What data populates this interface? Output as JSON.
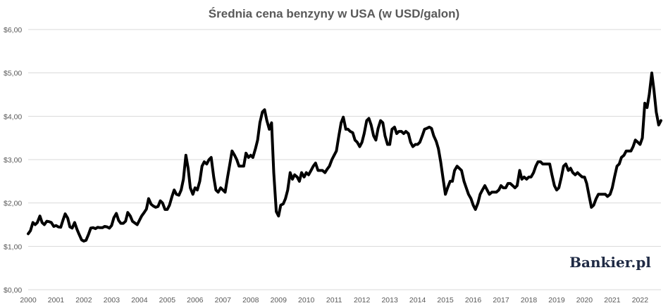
{
  "chart_data": {
    "type": "line",
    "title": "Średnia cena benzyny w USA (w USD/galon)",
    "xlabel": "",
    "ylabel": "",
    "xlim": [
      2000.0,
      2022.75
    ],
    "ylim": [
      0,
      6
    ],
    "grid": true,
    "y_ticks": [
      {
        "value": 0,
        "label": "$0,00"
      },
      {
        "value": 1,
        "label": "$1,00"
      },
      {
        "value": 2,
        "label": "$2,00"
      },
      {
        "value": 3,
        "label": "$3,00"
      },
      {
        "value": 4,
        "label": "$4,00"
      },
      {
        "value": 5,
        "label": "$5,00"
      },
      {
        "value": 6,
        "label": "$6,00"
      }
    ],
    "x_ticks": [
      {
        "value": 2000,
        "label": "2000"
      },
      {
        "value": 2001,
        "label": "2001"
      },
      {
        "value": 2002,
        "label": "2002"
      },
      {
        "value": 2003,
        "label": "2003"
      },
      {
        "value": 2004,
        "label": "2004"
      },
      {
        "value": 2005,
        "label": "2005"
      },
      {
        "value": 2006,
        "label": "2006"
      },
      {
        "value": 2007,
        "label": "2007"
      },
      {
        "value": 2008,
        "label": "2008"
      },
      {
        "value": 2009,
        "label": "2009"
      },
      {
        "value": 2010,
        "label": "2010"
      },
      {
        "value": 2011,
        "label": "2011"
      },
      {
        "value": 2012,
        "label": "2012"
      },
      {
        "value": 2013,
        "label": "2013"
      },
      {
        "value": 2014,
        "label": "2014"
      },
      {
        "value": 2015,
        "label": "2015"
      },
      {
        "value": 2016,
        "label": "2016"
      },
      {
        "value": 2017,
        "label": "2017"
      },
      {
        "value": 2018,
        "label": "2018"
      },
      {
        "value": 2019,
        "label": "2019"
      },
      {
        "value": 2020,
        "label": "2020"
      },
      {
        "value": 2021,
        "label": "2021"
      },
      {
        "value": 2022,
        "label": "2022"
      }
    ],
    "series": [
      {
        "color": "#000000",
        "points": [
          [
            2000.0,
            1.29
          ],
          [
            2000.08,
            1.36
          ],
          [
            2000.17,
            1.55
          ],
          [
            2000.25,
            1.5
          ],
          [
            2000.33,
            1.55
          ],
          [
            2000.42,
            1.7
          ],
          [
            2000.5,
            1.55
          ],
          [
            2000.58,
            1.5
          ],
          [
            2000.67,
            1.58
          ],
          [
            2000.75,
            1.57
          ],
          [
            2000.83,
            1.55
          ],
          [
            2000.92,
            1.46
          ],
          [
            2001.0,
            1.48
          ],
          [
            2001.08,
            1.45
          ],
          [
            2001.17,
            1.44
          ],
          [
            2001.25,
            1.6
          ],
          [
            2001.33,
            1.75
          ],
          [
            2001.42,
            1.65
          ],
          [
            2001.5,
            1.45
          ],
          [
            2001.58,
            1.42
          ],
          [
            2001.67,
            1.55
          ],
          [
            2001.75,
            1.4
          ],
          [
            2001.83,
            1.28
          ],
          [
            2001.92,
            1.15
          ],
          [
            2002.0,
            1.12
          ],
          [
            2002.08,
            1.14
          ],
          [
            2002.17,
            1.28
          ],
          [
            2002.25,
            1.42
          ],
          [
            2002.33,
            1.43
          ],
          [
            2002.42,
            1.41
          ],
          [
            2002.5,
            1.44
          ],
          [
            2002.58,
            1.43
          ],
          [
            2002.67,
            1.43
          ],
          [
            2002.75,
            1.46
          ],
          [
            2002.83,
            1.45
          ],
          [
            2002.92,
            1.42
          ],
          [
            2003.0,
            1.48
          ],
          [
            2003.08,
            1.66
          ],
          [
            2003.17,
            1.76
          ],
          [
            2003.25,
            1.6
          ],
          [
            2003.33,
            1.53
          ],
          [
            2003.42,
            1.53
          ],
          [
            2003.5,
            1.58
          ],
          [
            2003.58,
            1.78
          ],
          [
            2003.67,
            1.7
          ],
          [
            2003.75,
            1.58
          ],
          [
            2003.83,
            1.54
          ],
          [
            2003.92,
            1.5
          ],
          [
            2004.0,
            1.6
          ],
          [
            2004.08,
            1.7
          ],
          [
            2004.17,
            1.78
          ],
          [
            2004.25,
            1.86
          ],
          [
            2004.33,
            2.1
          ],
          [
            2004.42,
            1.97
          ],
          [
            2004.5,
            1.93
          ],
          [
            2004.58,
            1.9
          ],
          [
            2004.67,
            1.92
          ],
          [
            2004.75,
            2.05
          ],
          [
            2004.83,
            2.0
          ],
          [
            2004.92,
            1.85
          ],
          [
            2005.0,
            1.85
          ],
          [
            2005.08,
            1.95
          ],
          [
            2005.17,
            2.15
          ],
          [
            2005.25,
            2.3
          ],
          [
            2005.33,
            2.2
          ],
          [
            2005.42,
            2.18
          ],
          [
            2005.5,
            2.3
          ],
          [
            2005.58,
            2.55
          ],
          [
            2005.67,
            3.1
          ],
          [
            2005.75,
            2.8
          ],
          [
            2005.83,
            2.35
          ],
          [
            2005.92,
            2.2
          ],
          [
            2006.0,
            2.35
          ],
          [
            2006.08,
            2.3
          ],
          [
            2006.17,
            2.5
          ],
          [
            2006.25,
            2.85
          ],
          [
            2006.33,
            2.95
          ],
          [
            2006.42,
            2.9
          ],
          [
            2006.5,
            3.0
          ],
          [
            2006.58,
            3.05
          ],
          [
            2006.67,
            2.6
          ],
          [
            2006.75,
            2.3
          ],
          [
            2006.83,
            2.25
          ],
          [
            2006.92,
            2.35
          ],
          [
            2007.0,
            2.3
          ],
          [
            2007.08,
            2.25
          ],
          [
            2007.17,
            2.6
          ],
          [
            2007.25,
            2.9
          ],
          [
            2007.33,
            3.2
          ],
          [
            2007.42,
            3.1
          ],
          [
            2007.5,
            3.0
          ],
          [
            2007.58,
            2.85
          ],
          [
            2007.67,
            2.85
          ],
          [
            2007.75,
            2.85
          ],
          [
            2007.83,
            3.15
          ],
          [
            2007.92,
            3.05
          ],
          [
            2008.0,
            3.1
          ],
          [
            2008.08,
            3.05
          ],
          [
            2008.17,
            3.25
          ],
          [
            2008.25,
            3.45
          ],
          [
            2008.33,
            3.85
          ],
          [
            2008.42,
            4.1
          ],
          [
            2008.5,
            4.15
          ],
          [
            2008.58,
            3.9
          ],
          [
            2008.67,
            3.7
          ],
          [
            2008.75,
            3.85
          ],
          [
            2008.83,
            2.7
          ],
          [
            2008.92,
            1.8
          ],
          [
            2009.0,
            1.7
          ],
          [
            2009.08,
            1.95
          ],
          [
            2009.17,
            1.98
          ],
          [
            2009.25,
            2.1
          ],
          [
            2009.33,
            2.3
          ],
          [
            2009.42,
            2.7
          ],
          [
            2009.5,
            2.55
          ],
          [
            2009.58,
            2.65
          ],
          [
            2009.67,
            2.6
          ],
          [
            2009.75,
            2.5
          ],
          [
            2009.83,
            2.7
          ],
          [
            2009.92,
            2.6
          ],
          [
            2010.0,
            2.7
          ],
          [
            2010.08,
            2.65
          ],
          [
            2010.17,
            2.75
          ],
          [
            2010.25,
            2.85
          ],
          [
            2010.33,
            2.92
          ],
          [
            2010.42,
            2.75
          ],
          [
            2010.5,
            2.75
          ],
          [
            2010.58,
            2.75
          ],
          [
            2010.67,
            2.7
          ],
          [
            2010.75,
            2.78
          ],
          [
            2010.83,
            2.85
          ],
          [
            2010.92,
            3.0
          ],
          [
            2011.0,
            3.1
          ],
          [
            2011.08,
            3.2
          ],
          [
            2011.17,
            3.55
          ],
          [
            2011.25,
            3.85
          ],
          [
            2011.33,
            3.98
          ],
          [
            2011.42,
            3.7
          ],
          [
            2011.5,
            3.7
          ],
          [
            2011.58,
            3.65
          ],
          [
            2011.67,
            3.62
          ],
          [
            2011.75,
            3.45
          ],
          [
            2011.83,
            3.4
          ],
          [
            2011.92,
            3.3
          ],
          [
            2012.0,
            3.4
          ],
          [
            2012.08,
            3.6
          ],
          [
            2012.17,
            3.9
          ],
          [
            2012.25,
            3.95
          ],
          [
            2012.33,
            3.8
          ],
          [
            2012.42,
            3.55
          ],
          [
            2012.5,
            3.45
          ],
          [
            2012.58,
            3.72
          ],
          [
            2012.67,
            3.9
          ],
          [
            2012.75,
            3.85
          ],
          [
            2012.83,
            3.55
          ],
          [
            2012.92,
            3.35
          ],
          [
            2013.0,
            3.35
          ],
          [
            2013.08,
            3.7
          ],
          [
            2013.17,
            3.75
          ],
          [
            2013.25,
            3.6
          ],
          [
            2013.33,
            3.65
          ],
          [
            2013.42,
            3.65
          ],
          [
            2013.5,
            3.6
          ],
          [
            2013.58,
            3.65
          ],
          [
            2013.67,
            3.6
          ],
          [
            2013.75,
            3.4
          ],
          [
            2013.83,
            3.3
          ],
          [
            2013.92,
            3.35
          ],
          [
            2014.0,
            3.35
          ],
          [
            2014.08,
            3.4
          ],
          [
            2014.17,
            3.55
          ],
          [
            2014.25,
            3.7
          ],
          [
            2014.33,
            3.72
          ],
          [
            2014.42,
            3.75
          ],
          [
            2014.5,
            3.72
          ],
          [
            2014.58,
            3.55
          ],
          [
            2014.67,
            3.42
          ],
          [
            2014.75,
            3.25
          ],
          [
            2014.83,
            2.95
          ],
          [
            2014.92,
            2.55
          ],
          [
            2015.0,
            2.2
          ],
          [
            2015.08,
            2.35
          ],
          [
            2015.17,
            2.5
          ],
          [
            2015.25,
            2.5
          ],
          [
            2015.33,
            2.75
          ],
          [
            2015.42,
            2.85
          ],
          [
            2015.5,
            2.8
          ],
          [
            2015.58,
            2.75
          ],
          [
            2015.67,
            2.5
          ],
          [
            2015.75,
            2.35
          ],
          [
            2015.83,
            2.2
          ],
          [
            2015.92,
            2.1
          ],
          [
            2016.0,
            1.95
          ],
          [
            2016.08,
            1.85
          ],
          [
            2016.17,
            2.0
          ],
          [
            2016.25,
            2.2
          ],
          [
            2016.33,
            2.3
          ],
          [
            2016.42,
            2.4
          ],
          [
            2016.5,
            2.3
          ],
          [
            2016.58,
            2.2
          ],
          [
            2016.67,
            2.25
          ],
          [
            2016.75,
            2.25
          ],
          [
            2016.83,
            2.25
          ],
          [
            2016.92,
            2.3
          ],
          [
            2017.0,
            2.4
          ],
          [
            2017.08,
            2.35
          ],
          [
            2017.17,
            2.35
          ],
          [
            2017.25,
            2.45
          ],
          [
            2017.33,
            2.45
          ],
          [
            2017.42,
            2.4
          ],
          [
            2017.5,
            2.35
          ],
          [
            2017.58,
            2.4
          ],
          [
            2017.67,
            2.75
          ],
          [
            2017.75,
            2.55
          ],
          [
            2017.83,
            2.6
          ],
          [
            2017.92,
            2.55
          ],
          [
            2018.0,
            2.6
          ],
          [
            2018.08,
            2.6
          ],
          [
            2018.17,
            2.7
          ],
          [
            2018.25,
            2.85
          ],
          [
            2018.33,
            2.95
          ],
          [
            2018.42,
            2.95
          ],
          [
            2018.5,
            2.9
          ],
          [
            2018.58,
            2.9
          ],
          [
            2018.67,
            2.9
          ],
          [
            2018.75,
            2.9
          ],
          [
            2018.83,
            2.65
          ],
          [
            2018.92,
            2.4
          ],
          [
            2019.0,
            2.3
          ],
          [
            2019.08,
            2.35
          ],
          [
            2019.17,
            2.6
          ],
          [
            2019.25,
            2.85
          ],
          [
            2019.33,
            2.9
          ],
          [
            2019.42,
            2.75
          ],
          [
            2019.5,
            2.8
          ],
          [
            2019.58,
            2.7
          ],
          [
            2019.67,
            2.65
          ],
          [
            2019.75,
            2.7
          ],
          [
            2019.83,
            2.65
          ],
          [
            2019.92,
            2.6
          ],
          [
            2020.0,
            2.6
          ],
          [
            2020.08,
            2.45
          ],
          [
            2020.17,
            2.15
          ],
          [
            2020.25,
            1.9
          ],
          [
            2020.33,
            1.95
          ],
          [
            2020.42,
            2.1
          ],
          [
            2020.5,
            2.2
          ],
          [
            2020.58,
            2.2
          ],
          [
            2020.67,
            2.2
          ],
          [
            2020.75,
            2.2
          ],
          [
            2020.83,
            2.15
          ],
          [
            2020.92,
            2.2
          ],
          [
            2021.0,
            2.35
          ],
          [
            2021.08,
            2.6
          ],
          [
            2021.17,
            2.85
          ],
          [
            2021.25,
            2.9
          ],
          [
            2021.33,
            3.05
          ],
          [
            2021.42,
            3.1
          ],
          [
            2021.5,
            3.2
          ],
          [
            2021.58,
            3.2
          ],
          [
            2021.67,
            3.2
          ],
          [
            2021.75,
            3.3
          ],
          [
            2021.83,
            3.45
          ],
          [
            2021.92,
            3.4
          ],
          [
            2022.0,
            3.35
          ],
          [
            2022.08,
            3.5
          ],
          [
            2022.17,
            4.3
          ],
          [
            2022.25,
            4.2
          ],
          [
            2022.33,
            4.5
          ],
          [
            2022.42,
            5.0
          ],
          [
            2022.5,
            4.6
          ],
          [
            2022.58,
            4.1
          ],
          [
            2022.67,
            3.8
          ],
          [
            2022.75,
            3.9
          ]
        ]
      }
    ],
    "logo": "Bankier.pl"
  }
}
